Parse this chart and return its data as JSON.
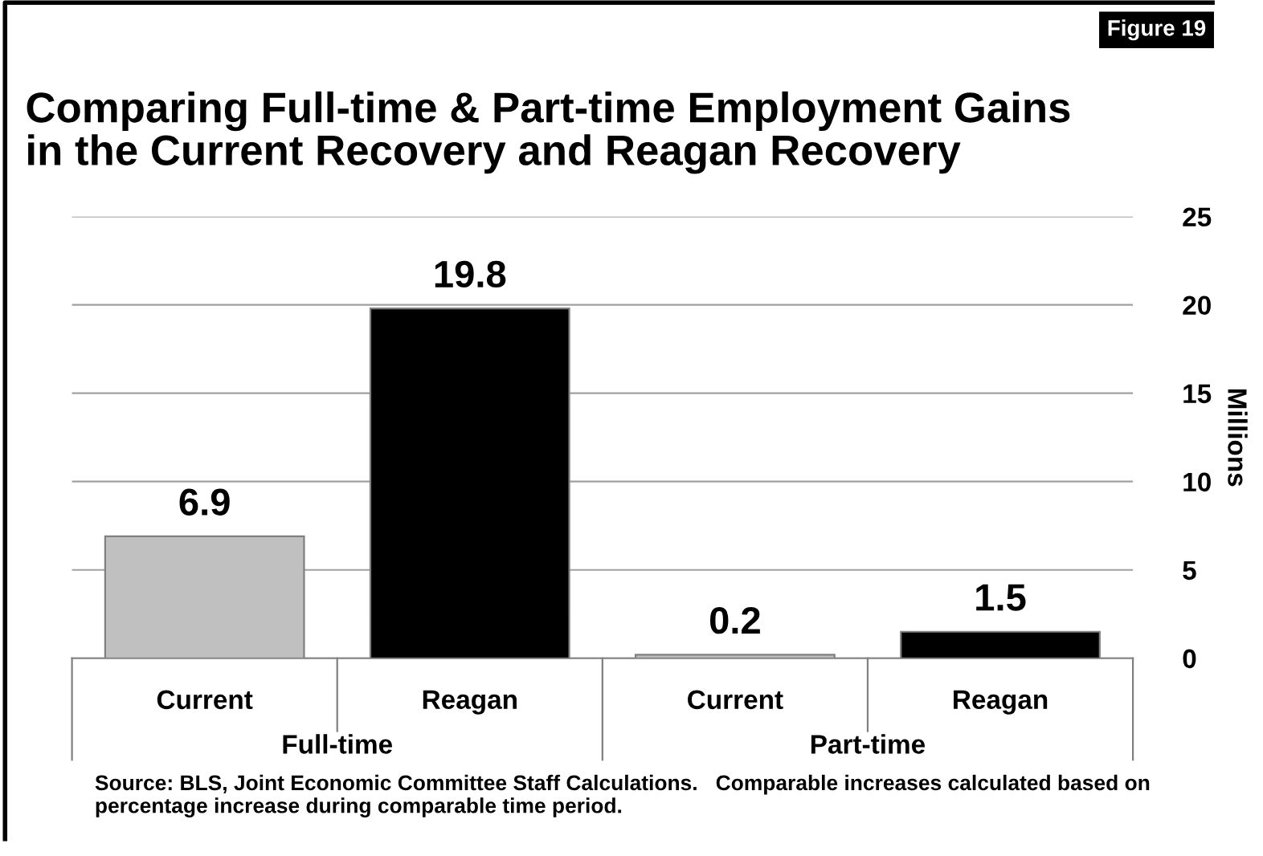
{
  "chart_data": {
    "type": "bar",
    "title": "Comparing Full-time & Part-time Employment Gains\nin the Current Recovery and Reagan Recovery",
    "categories": [
      "Current",
      "Reagan",
      "Current",
      "Reagan"
    ],
    "values": [
      6.9,
      19.8,
      0.2,
      1.5
    ],
    "colors": [
      "#c0c0c0",
      "#000000",
      "#c0c0c0",
      "#000000"
    ],
    "ylabel": "Millions",
    "ylim": [
      0,
      25
    ],
    "yticks": [
      0,
      5,
      10,
      15,
      20,
      25
    ],
    "grid": "y",
    "data_labels": true,
    "legend": false,
    "annotations": [
      "Figure 19",
      "Full-time",
      "Part-time",
      "Source: BLS, Joint Economic Committee Staff Calculations.   Comparable increases calculated based on percentage increase during comparable time period."
    ]
  }
}
